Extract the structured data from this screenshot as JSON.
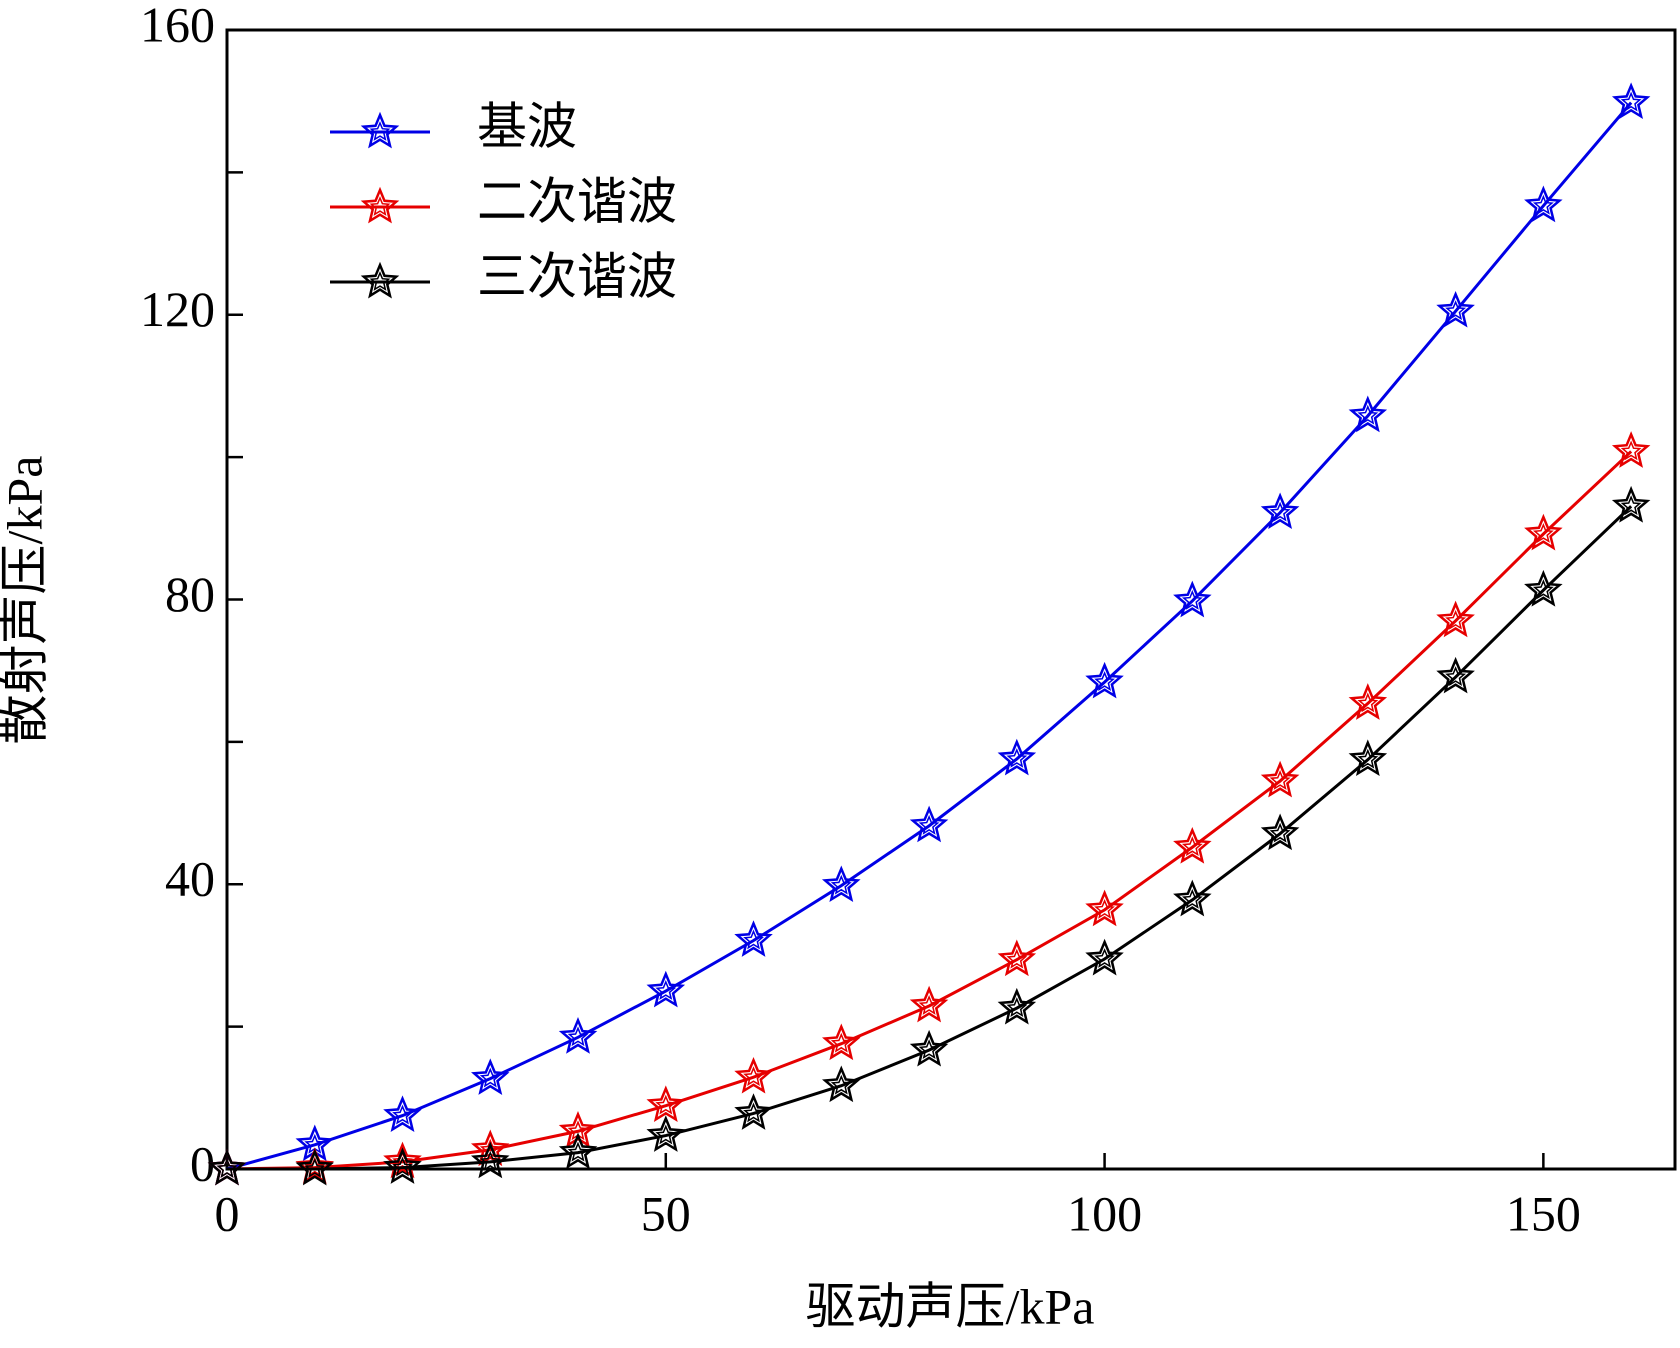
{
  "chart_data": {
    "type": "line",
    "xlabel": "驱动声压/kPa",
    "ylabel": "散射声压/kPa",
    "x": [
      0,
      10,
      20,
      30,
      40,
      50,
      60,
      70,
      80,
      90,
      100,
      110,
      120,
      130,
      140,
      150,
      160
    ],
    "series": [
      {
        "name": "基波",
        "color": "#0000e6",
        "values": [
          0,
          3.4,
          7.5,
          12.7,
          18.5,
          25,
          32.1,
          39.8,
          48.2,
          57.6,
          68.4,
          79.8,
          92.2,
          105.8,
          120.5,
          135.3,
          149.8
        ]
      },
      {
        "name": "二次谐波",
        "color": "#e60000",
        "values": [
          0,
          0.2,
          1,
          2.7,
          5.3,
          8.9,
          12.9,
          17.6,
          22.9,
          29.4,
          36.4,
          45.2,
          54.5,
          65.4,
          77,
          89.2,
          100.8
        ]
      },
      {
        "name": "三次谐波",
        "color": "#000000",
        "values": [
          0,
          0,
          0.2,
          1,
          2.3,
          4.7,
          7.8,
          11.7,
          16.7,
          22.6,
          29.5,
          37.8,
          47.1,
          57.5,
          69.1,
          81.3,
          93.1
        ]
      }
    ],
    "xlim": [
      0,
      165
    ],
    "xticks": [
      0,
      50,
      100,
      150
    ],
    "ylim": [
      0,
      160
    ],
    "yticks": [
      0,
      40,
      80,
      120,
      160
    ],
    "yminorticks": [
      20,
      60,
      100,
      140
    ],
    "grid": false,
    "legend": "upper left",
    "marker": "star"
  }
}
